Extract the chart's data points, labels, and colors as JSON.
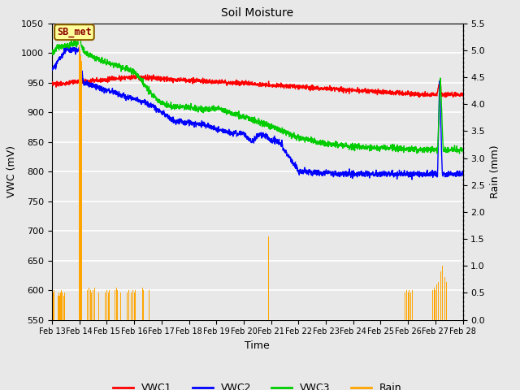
{
  "title": "Soil Moisture",
  "xlabel": "Time",
  "ylabel_left": "VWC (mV)",
  "ylabel_right": "Rain (mm)",
  "ylim_left": [
    550,
    1050
  ],
  "ylim_right": [
    0.0,
    5.5
  ],
  "yticks_left": [
    550,
    600,
    650,
    700,
    750,
    800,
    850,
    900,
    950,
    1000,
    1050
  ],
  "yticks_right": [
    0.0,
    0.5,
    1.0,
    1.5,
    2.0,
    2.5,
    3.0,
    3.5,
    4.0,
    4.5,
    5.0,
    5.5
  ],
  "xlim": [
    0,
    15
  ],
  "xtick_labels": [
    "Feb 13",
    "Feb 14",
    "Feb 15",
    "Feb 16",
    "Feb 17",
    "Feb 18",
    "Feb 19",
    "Feb 20",
    "Feb 21",
    "Feb 22",
    "Feb 23",
    "Feb 24",
    "Feb 25",
    "Feb 26",
    "Feb 27",
    "Feb 28"
  ],
  "annotation_text": "SB_met",
  "annotation_color": "#8B0000",
  "annotation_bg": "#FFFF99",
  "annotation_border": "#8B6000",
  "colors": {
    "VWC1": "#FF0000",
    "VWC2": "#0000FF",
    "VWC3": "#00CC00",
    "Rain": "#FFA500"
  },
  "background_color": "#E8E8E8",
  "grid_color": "#FFFFFF",
  "fig_bg": "#E8E8E8"
}
